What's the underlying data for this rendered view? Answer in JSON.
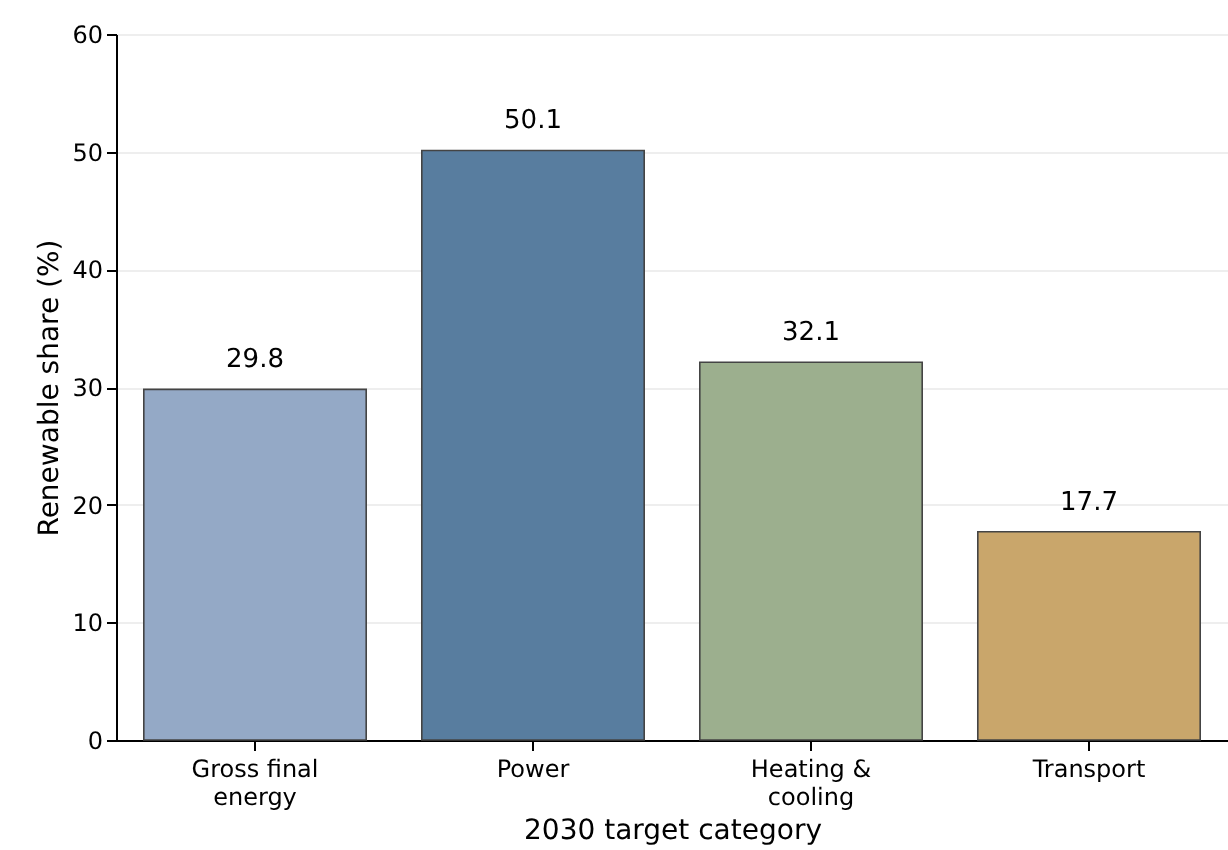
{
  "chart_data": {
    "type": "bar",
    "xlabel": "2030 target category",
    "ylabel": "Renewable share (%)",
    "categories": [
      "Gross final energy",
      "Power",
      "Heating & cooling",
      "Transport"
    ],
    "values": [
      29.8,
      50.1,
      32.1,
      17.7
    ],
    "colors": [
      "#94a9c6",
      "#587d9f",
      "#9caf8e",
      "#c9a66b"
    ],
    "ylim": [
      0,
      60
    ],
    "yticks": [
      0,
      10,
      20,
      30,
      40,
      50,
      60
    ],
    "grid": "y",
    "data_labels": true
  }
}
